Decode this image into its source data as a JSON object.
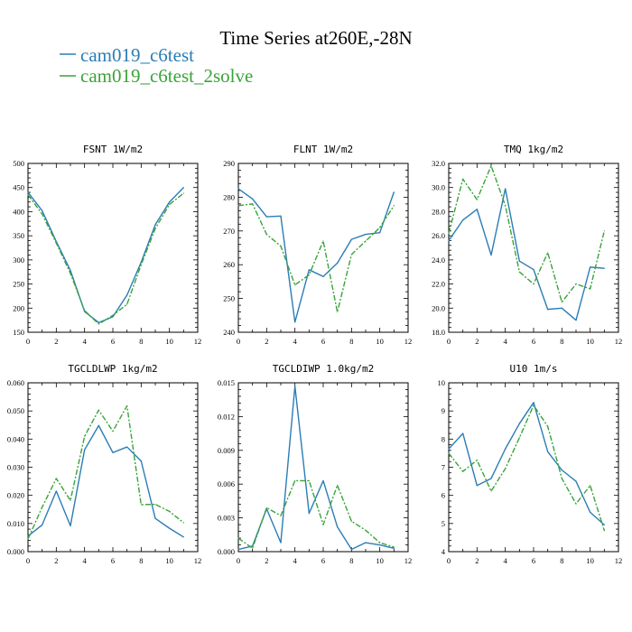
{
  "figure": {
    "title": "Time Series at260E,-28N",
    "legend": [
      {
        "name": "cam019_c6test",
        "color": "#2a7db5"
      },
      {
        "name": "cam019_c6test_2solve",
        "color": "#3aa33a"
      }
    ]
  },
  "chart_data": [
    {
      "type": "line",
      "title": "FSNT   1W/m2",
      "xlim": [
        0,
        12
      ],
      "xticks": [
        0,
        2,
        4,
        6,
        8,
        10,
        12
      ],
      "ylim": [
        150,
        500
      ],
      "yticks": [
        150,
        200,
        250,
        300,
        350,
        400,
        450,
        500
      ],
      "ytick_labels": [
        "150",
        "200",
        "250",
        "300",
        "350",
        "400",
        "450",
        "500"
      ],
      "x": [
        0,
        1,
        2,
        3,
        4,
        5,
        6,
        7,
        8,
        9,
        10,
        11
      ],
      "series": [
        {
          "name": "cam019_c6test",
          "color": "#2a7db5",
          "dash": "",
          "values": [
            440,
            402,
            338,
            278,
            193,
            170,
            182,
            227,
            295,
            373,
            420,
            450
          ]
        },
        {
          "name": "cam019_c6test_2solve",
          "color": "#3aa33a",
          "dash": "6 2 2 2",
          "values": [
            435,
            395,
            335,
            272,
            195,
            167,
            185,
            208,
            290,
            365,
            415,
            438
          ]
        }
      ]
    },
    {
      "type": "line",
      "title": "FLNT   1W/m2",
      "xlim": [
        0,
        12
      ],
      "xticks": [
        0,
        2,
        4,
        6,
        8,
        10,
        12
      ],
      "ylim": [
        240,
        290
      ],
      "yticks": [
        240,
        250,
        260,
        270,
        280,
        290
      ],
      "ytick_labels": [
        "240",
        "250",
        "260",
        "270",
        "280",
        "290"
      ],
      "x": [
        0,
        1,
        2,
        3,
        4,
        5,
        6,
        7,
        8,
        9,
        10,
        11
      ],
      "series": [
        {
          "name": "cam019_c6test",
          "color": "#2a7db5",
          "dash": "",
          "values": [
            282.5,
            279.5,
            274.2,
            274.4,
            243,
            258.5,
            256.5,
            260.5,
            267.5,
            269,
            269.5,
            281.5
          ]
        },
        {
          "name": "cam019_c6test_2solve",
          "color": "#3aa33a",
          "dash": "6 2 2 2",
          "values": [
            277.5,
            278,
            269,
            265.5,
            254,
            257,
            267,
            246,
            263,
            267,
            271,
            277.5
          ]
        }
      ]
    },
    {
      "type": "line",
      "title": "TMQ   1kg/m2",
      "xlim": [
        0,
        12
      ],
      "xticks": [
        0,
        2,
        4,
        6,
        8,
        10,
        12
      ],
      "ylim": [
        18,
        32
      ],
      "yticks": [
        18,
        20,
        22,
        24,
        26,
        28,
        30,
        32
      ],
      "ytick_labels": [
        "18.0",
        "20.0",
        "22.0",
        "24.0",
        "26.0",
        "28.0",
        "30.0",
        "32.0"
      ],
      "x": [
        0,
        1,
        2,
        3,
        4,
        5,
        6,
        7,
        8,
        9,
        10,
        11
      ],
      "series": [
        {
          "name": "cam019_c6test",
          "color": "#2a7db5",
          "dash": "",
          "values": [
            25.6,
            27.3,
            28.2,
            24.4,
            29.9,
            23.9,
            23.2,
            19.9,
            20,
            19,
            23.4,
            23.3
          ]
        },
        {
          "name": "cam019_c6test_2solve",
          "color": "#3aa33a",
          "dash": "6 2 2 2",
          "values": [
            26.2,
            30.7,
            29,
            31.8,
            28.5,
            23,
            22,
            24.6,
            20.5,
            22,
            21.6,
            26.4
          ]
        }
      ]
    },
    {
      "type": "line",
      "title": "TGCLDLWP   1kg/m2",
      "xlim": [
        0,
        12
      ],
      "xticks": [
        0,
        2,
        4,
        6,
        8,
        10,
        12
      ],
      "ylim": [
        0,
        0.06
      ],
      "yticks": [
        0,
        0.01,
        0.02,
        0.03,
        0.04,
        0.05,
        0.06
      ],
      "ytick_labels": [
        "0.000",
        "0.010",
        "0.020",
        "0.030",
        "0.040",
        "0.050",
        "0.060"
      ],
      "x": [
        0,
        1,
        2,
        3,
        4,
        5,
        6,
        7,
        8,
        9,
        10,
        11
      ],
      "series": [
        {
          "name": "cam019_c6test",
          "color": "#2a7db5",
          "dash": "",
          "values": [
            0.0055,
            0.0095,
            0.0215,
            0.0092,
            0.0362,
            0.0448,
            0.0352,
            0.0372,
            0.0322,
            0.0118,
            0.0083,
            0.0052
          ]
        },
        {
          "name": "cam019_c6test_2solve",
          "color": "#3aa33a",
          "dash": "6 2 2 2",
          "values": [
            0.0045,
            0.0158,
            0.026,
            0.0182,
            0.041,
            0.0503,
            0.0428,
            0.0518,
            0.0167,
            0.0168,
            0.0143,
            0.0103
          ]
        }
      ]
    },
    {
      "type": "line",
      "title": "TGCLDIWP   1.0kg/m2",
      "xlim": [
        0,
        12
      ],
      "xticks": [
        0,
        2,
        4,
        6,
        8,
        10,
        12
      ],
      "ylim": [
        0,
        0.015
      ],
      "yticks": [
        0,
        0.003,
        0.006,
        0.009,
        0.012,
        0.015
      ],
      "ytick_labels": [
        "0.000",
        "0.003",
        "0.006",
        "0.009",
        "0.012",
        "0.015"
      ],
      "x": [
        0,
        1,
        2,
        3,
        4,
        5,
        6,
        7,
        8,
        9,
        10,
        11
      ],
      "series": [
        {
          "name": "cam019_c6test",
          "color": "#2a7db5",
          "dash": "",
          "values": [
            0.0002,
            0.0005,
            0.0038,
            0.0008,
            0.0147,
            0.0034,
            0.0063,
            0.0022,
            0.0002,
            0.0008,
            0.0006,
            0.0003
          ]
        },
        {
          "name": "cam019_c6test_2solve",
          "color": "#3aa33a",
          "dash": "6 2 2 2",
          "values": [
            0.0012,
            0.0003,
            0.0039,
            0.0032,
            0.0063,
            0.0063,
            0.0024,
            0.0059,
            0.0027,
            0.0019,
            0.0008,
            0.0004
          ]
        }
      ]
    },
    {
      "type": "line",
      "title": "U10   1m/s",
      "xlim": [
        0,
        12
      ],
      "xticks": [
        0,
        2,
        4,
        6,
        8,
        10,
        12
      ],
      "ylim": [
        4,
        10
      ],
      "yticks": [
        4,
        5,
        6,
        7,
        8,
        9,
        10
      ],
      "ytick_labels": [
        "4",
        "5",
        "6",
        "7",
        "8",
        "9",
        "10"
      ],
      "x": [
        0,
        1,
        2,
        3,
        4,
        5,
        6,
        7,
        8,
        9,
        10,
        11
      ],
      "series": [
        {
          "name": "cam019_c6test",
          "color": "#2a7db5",
          "dash": "",
          "values": [
            7.65,
            8.2,
            6.35,
            6.6,
            7.65,
            8.55,
            9.3,
            7.55,
            6.9,
            6.5,
            5.4,
            4.95
          ]
        },
        {
          "name": "cam019_c6test_2solve",
          "color": "#3aa33a",
          "dash": "6 2 2 2",
          "values": [
            7.5,
            6.85,
            7.25,
            6.15,
            6.95,
            8.05,
            9.2,
            8.45,
            6.6,
            5.7,
            6.35,
            4.75
          ]
        }
      ]
    }
  ]
}
